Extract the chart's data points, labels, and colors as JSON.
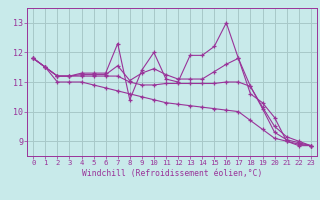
{
  "xlabel": "Windchill (Refroidissement éolien,°C)",
  "background_color": "#c8eaea",
  "grid_color": "#a8c8c8",
  "line_color": "#993399",
  "x": [
    0,
    1,
    2,
    3,
    4,
    5,
    6,
    7,
    8,
    9,
    10,
    11,
    12,
    13,
    14,
    15,
    16,
    17,
    18,
    19,
    20,
    21,
    22,
    23
  ],
  "series": [
    [
      11.8,
      11.5,
      11.2,
      11.2,
      11.3,
      11.3,
      11.3,
      12.3,
      10.4,
      11.4,
      12.0,
      11.1,
      11.0,
      11.9,
      11.9,
      12.2,
      13.0,
      11.8,
      10.6,
      10.3,
      9.8,
      9.0,
      8.85,
      8.85
    ],
    [
      11.8,
      11.5,
      11.2,
      11.2,
      11.25,
      11.25,
      11.25,
      11.55,
      11.05,
      11.3,
      11.45,
      11.25,
      11.1,
      11.1,
      11.1,
      11.35,
      11.6,
      11.8,
      10.85,
      10.15,
      9.5,
      9.15,
      9.0,
      8.85
    ],
    [
      11.8,
      11.5,
      11.2,
      11.2,
      11.2,
      11.2,
      11.2,
      11.2,
      11.0,
      10.9,
      10.9,
      10.95,
      10.95,
      10.95,
      10.95,
      10.95,
      11.0,
      11.0,
      10.85,
      10.1,
      9.3,
      9.05,
      8.95,
      8.85
    ],
    [
      11.8,
      11.5,
      11.0,
      11.0,
      11.0,
      10.9,
      10.8,
      10.7,
      10.6,
      10.5,
      10.4,
      10.3,
      10.25,
      10.2,
      10.15,
      10.1,
      10.05,
      10.0,
      9.7,
      9.4,
      9.1,
      9.0,
      8.9,
      8.85
    ]
  ],
  "ylim": [
    8.5,
    13.5
  ],
  "yticks": [
    9,
    10,
    11,
    12,
    13
  ],
  "ytick_labels": [
    "9",
    "10",
    "11",
    "12",
    "13"
  ],
  "xlim": [
    -0.5,
    23.5
  ],
  "xtick_labels": [
    "0",
    "1",
    "2",
    "3",
    "4",
    "5",
    "6",
    "7",
    "8",
    "9",
    "10",
    "11",
    "12",
    "13",
    "14",
    "15",
    "16",
    "17",
    "18",
    "19",
    "20",
    "21",
    "22",
    "23"
  ]
}
